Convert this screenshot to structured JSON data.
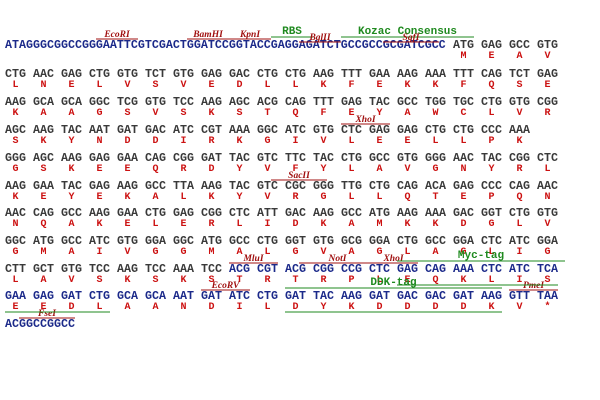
{
  "rows": [
    {
      "prefix": "ATAGGGCGGCCGGGAATTCGTCGACTGGATCCGGTACCGAGGAGATCTGCCGCCGCGATCGCC",
      "codons": [
        "ATG",
        "GAG",
        "GCC",
        "GTG"
      ],
      "protein": [
        "M",
        "E",
        "A",
        "V"
      ]
    },
    {
      "codons": [
        "CTG",
        "AAC",
        "GAG",
        "CTG",
        "GTG",
        "TCT",
        "GTG",
        "GAG",
        "GAC",
        "CTG",
        "CTG",
        "AAG",
        "TTT",
        "GAA",
        "AAG",
        "AAA",
        "TTT",
        "CAG",
        "TCT",
        "GAG"
      ],
      "protein": [
        "L",
        "N",
        "E",
        "L",
        "V",
        "S",
        "V",
        "E",
        "D",
        "L",
        "L",
        "K",
        "F",
        "E",
        "K",
        "K",
        "F",
        "Q",
        "S",
        "E"
      ]
    },
    {
      "codons": [
        "AAG",
        "GCA",
        "GCA",
        "GGC",
        "TCG",
        "GTG",
        "TCC",
        "AAG",
        "AGC",
        "ACG",
        "CAG",
        "TTT",
        "GAG",
        "TAC",
        "GCC",
        "TGG",
        "TGC",
        "CTG",
        "GTG",
        "CGG"
      ],
      "protein": [
        "K",
        "A",
        "A",
        "G",
        "S",
        "V",
        "S",
        "K",
        "S",
        "T",
        "Q",
        "F",
        "E",
        "Y",
        "A",
        "W",
        "C",
        "L",
        "V",
        "R"
      ]
    },
    {
      "codons": [
        "AGC",
        "AAG",
        "TAC",
        "AAT",
        "GAT",
        "GAC",
        "ATC",
        "CGT",
        "AAA",
        "GGC",
        "ATC",
        "GTG",
        "CTC",
        "GAG",
        "GAG",
        "CTG",
        "CTG",
        "CCC",
        "AAA"
      ],
      "protein": [
        "S",
        "K",
        "Y",
        "N",
        "D",
        "D",
        "I",
        "R",
        "K",
        "G",
        "I",
        "V",
        "L",
        "E",
        "E",
        "L",
        "L",
        "P",
        "K"
      ]
    },
    {
      "codons": [
        "GGG",
        "AGC",
        "AAG",
        "GAG",
        "GAA",
        "CAG",
        "CGG",
        "GAT",
        "TAC",
        "GTC",
        "TTC",
        "TAC",
        "CTG",
        "GCC",
        "GTG",
        "GGG",
        "AAC",
        "TAC",
        "CGG",
        "CTC"
      ],
      "protein": [
        "G",
        "S",
        "K",
        "E",
        "E",
        "Q",
        "R",
        "D",
        "Y",
        "V",
        "F",
        "Y",
        "L",
        "A",
        "V",
        "G",
        "N",
        "Y",
        "R",
        "L"
      ]
    },
    {
      "codons": [
        "AAG",
        "GAA",
        "TAC",
        "GAG",
        "AAG",
        "GCC",
        "TTA",
        "AAG",
        "TAC",
        "GTC",
        "CGC",
        "GGG",
        "TTG",
        "CTG",
        "CAG",
        "ACA",
        "GAG",
        "CCC",
        "CAG",
        "AAC"
      ],
      "protein": [
        "K",
        "E",
        "Y",
        "E",
        "K",
        "A",
        "L",
        "K",
        "Y",
        "V",
        "R",
        "G",
        "L",
        "L",
        "Q",
        "T",
        "E",
        "P",
        "Q",
        "N"
      ]
    },
    {
      "codons": [
        "AAC",
        "CAG",
        "GCC",
        "AAG",
        "GAA",
        "CTG",
        "GAG",
        "CGG",
        "CTC",
        "ATT",
        "GAC",
        "AAG",
        "GCC",
        "ATG",
        "AAG",
        "AAA",
        "GAC",
        "GGT",
        "CTG",
        "GTG"
      ],
      "protein": [
        "N",
        "Q",
        "A",
        "K",
        "E",
        "L",
        "E",
        "R",
        "L",
        "I",
        "D",
        "K",
        "A",
        "M",
        "K",
        "K",
        "D",
        "G",
        "L",
        "V"
      ]
    },
    {
      "codons": [
        "GGC",
        "ATG",
        "GCC",
        "ATC",
        "GTG",
        "GGA",
        "GGC",
        "ATG",
        "GCC",
        "CTG",
        "GGT",
        "GTG",
        "GCG",
        "GGA",
        "CTG",
        "GCC",
        "GGA",
        "CTC",
        "ATC",
        "GGA"
      ],
      "protein": [
        "G",
        "M",
        "A",
        "I",
        "V",
        "G",
        "G",
        "M",
        "A",
        "L",
        "G",
        "V",
        "A",
        "G",
        "L",
        "A",
        "G",
        "L",
        "I",
        "G"
      ]
    },
    {
      "codons": [
        "CTT",
        "GCT",
        "GTG",
        "TCC",
        "AAG",
        "TCC",
        "AAA",
        "TCC",
        "ACG",
        "CGT",
        "ACG",
        "CGG",
        "CCG",
        "CTC",
        "GAG",
        "CAG",
        "AAA",
        "CTC",
        "ATC",
        "TCA"
      ],
      "protein": [
        "L",
        "A",
        "V",
        "S",
        "K",
        "S",
        "K",
        "S",
        "T",
        "R",
        "T",
        "R",
        "P",
        "L",
        "E",
        "Q",
        "K",
        "L",
        "I",
        "S"
      ]
    },
    {
      "codons": [
        "GAA",
        "GAG",
        "GAT",
        "CTG",
        "GCA",
        "GCA",
        "AAT",
        "GAT",
        "ATC",
        "CTG",
        "GAT",
        "TAC",
        "AAG",
        "GAT",
        "GAC",
        "GAC",
        "GAT",
        "AAG",
        "GTT",
        "TAA"
      ],
      "protein": [
        "E",
        "E",
        "D",
        "L",
        "A",
        "A",
        "N",
        "D",
        "I",
        "L",
        "D",
        "Y",
        "K",
        "D",
        "D",
        "D",
        "D",
        "K",
        "V",
        "*"
      ]
    },
    {
      "prefix": "ACGGCCGGCC"
    }
  ],
  "features": [
    {
      "label": "EcoRI"
    },
    {
      "label": "BamHI"
    },
    {
      "label": "KpnI"
    },
    {
      "label": "RBS"
    },
    {
      "label": "BglII"
    },
    {
      "label": "Kozac Consensus"
    },
    {
      "label": "SgfI"
    },
    {
      "label": "XhoI"
    },
    {
      "label": "SacII"
    },
    {
      "label": "MluI"
    },
    {
      "label": "NotI"
    },
    {
      "label": "XhoI"
    },
    {
      "label": "Myc-tag"
    },
    {
      "label": "EcoRV"
    },
    {
      "label": "DDK-tag"
    },
    {
      "label": "PmeI"
    },
    {
      "label": "FseI"
    }
  ]
}
